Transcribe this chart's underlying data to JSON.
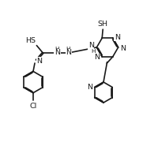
{
  "bg": "#ffffff",
  "lc": "#1a1a1a",
  "lw": 1.2,
  "fs": 6.8,
  "xlim": [
    0,
    10
  ],
  "ylim": [
    0,
    9.5
  ],
  "BL": 0.72
}
